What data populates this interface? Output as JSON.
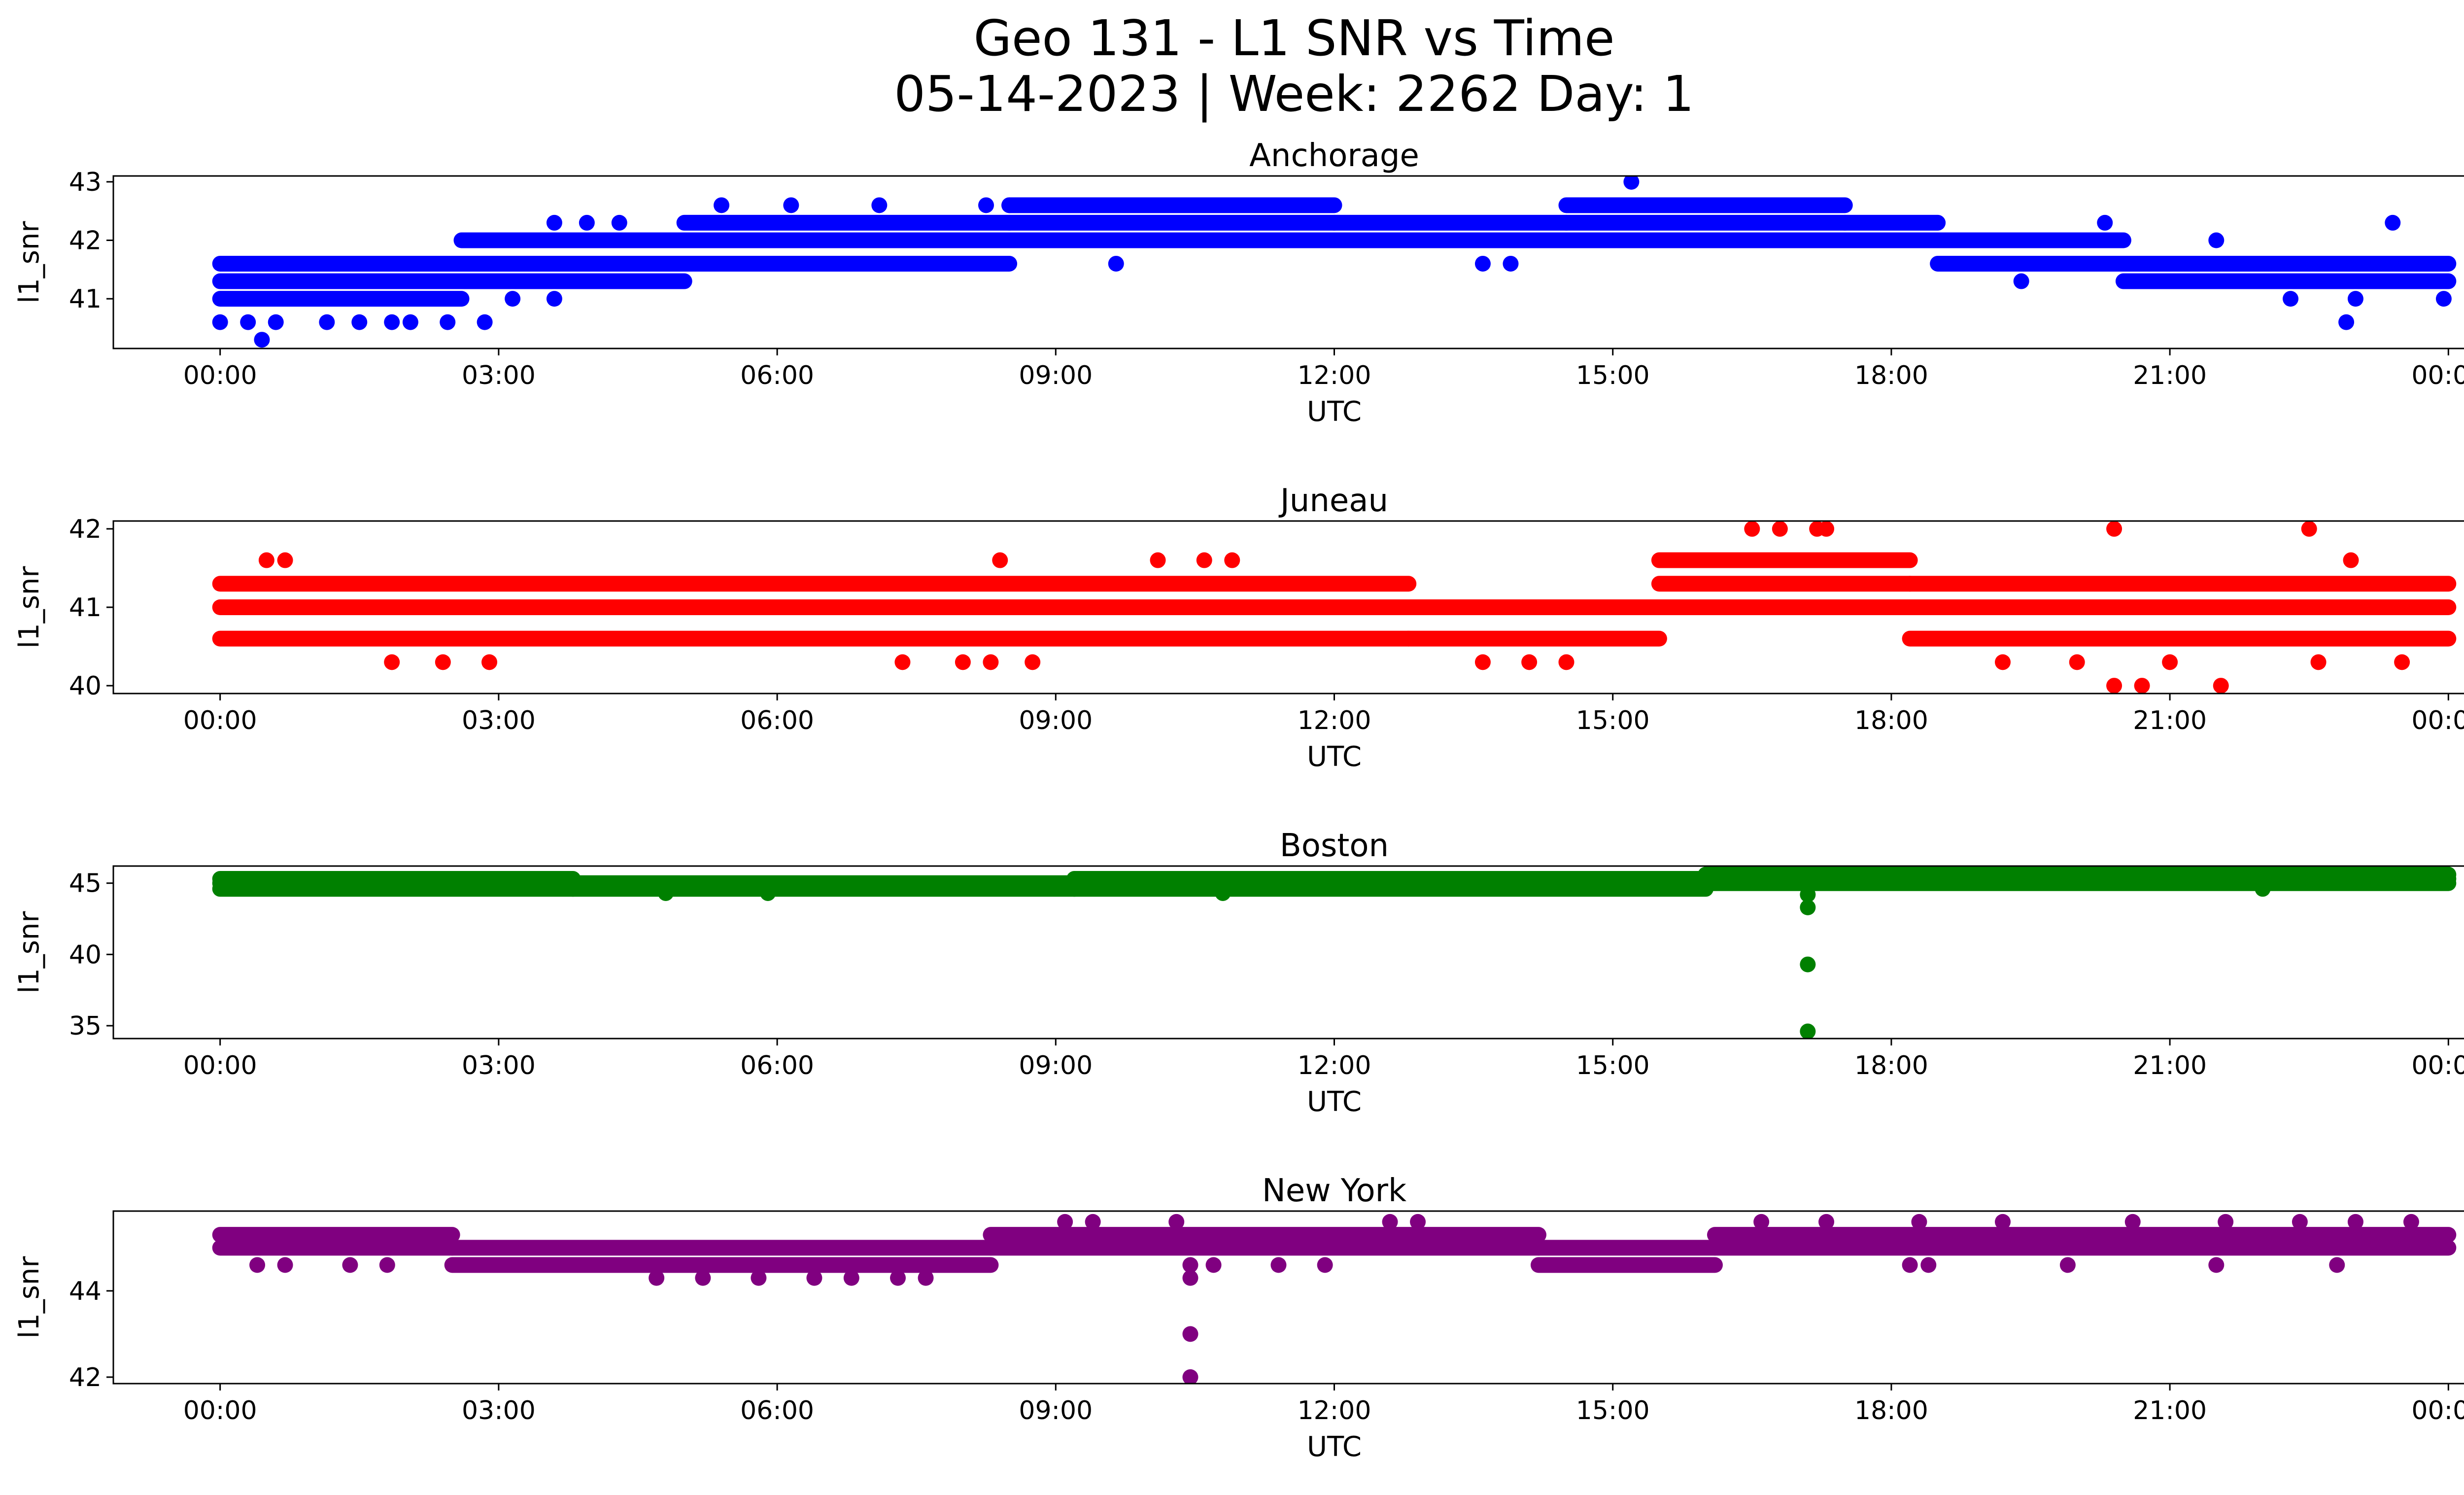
{
  "figure": {
    "title_line1": "Geo 131 - L1 SNR vs Time",
    "title_line2": "05-14-2023 | Week: 2262 Day: 1"
  },
  "chart_data": [
    {
      "type": "scatter",
      "title": "Anchorage",
      "xlabel": "UTC",
      "ylabel": "l1_snr",
      "color": "#0000ff",
      "x_ticks": [
        "00:00",
        "03:00",
        "06:00",
        "09:00",
        "12:00",
        "15:00",
        "18:00",
        "21:00",
        "00:00"
      ],
      "x_range_hours": [
        0,
        24
      ],
      "xlim_hours": [
        -1.15,
        25.15
      ],
      "y_ticks": [
        41,
        42,
        43
      ],
      "ylim": [
        40.15,
        43.1
      ],
      "levels": [
        40.3,
        40.6,
        41.0,
        41.3,
        41.6,
        42.0,
        42.3,
        42.6,
        43.0
      ],
      "baseline": [
        {
          "from": 0.0,
          "to": 2.6,
          "levels": [
            41.0,
            41.3,
            41.6
          ]
        },
        {
          "from": 2.6,
          "to": 5.0,
          "levels": [
            41.3,
            41.6,
            42.0
          ]
        },
        {
          "from": 5.0,
          "to": 8.5,
          "levels": [
            41.6,
            42.0,
            42.3
          ]
        },
        {
          "from": 8.5,
          "to": 12.0,
          "levels": [
            42.0,
            42.3,
            42.6
          ]
        },
        {
          "from": 12.0,
          "to": 14.5,
          "levels": [
            42.0,
            42.3
          ]
        },
        {
          "from": 14.5,
          "to": 17.5,
          "levels": [
            42.0,
            42.3,
            42.6
          ]
        },
        {
          "from": 17.5,
          "to": 18.5,
          "levels": [
            42.0,
            42.3
          ]
        },
        {
          "from": 18.5,
          "to": 20.5,
          "levels": [
            41.6,
            42.0
          ]
        },
        {
          "from": 20.5,
          "to": 24.0,
          "levels": [
            41.3,
            41.6
          ]
        }
      ],
      "points": [
        [
          0.45,
          40.3
        ],
        [
          0.0,
          40.6
        ],
        [
          0.3,
          40.6
        ],
        [
          0.6,
          40.6
        ],
        [
          1.15,
          40.6
        ],
        [
          1.5,
          40.6
        ],
        [
          1.85,
          40.6
        ],
        [
          2.05,
          40.6
        ],
        [
          2.45,
          40.6
        ],
        [
          2.85,
          40.6
        ],
        [
          3.15,
          41.0
        ],
        [
          3.6,
          41.0
        ],
        [
          3.85,
          41.6
        ],
        [
          3.6,
          42.3
        ],
        [
          3.95,
          42.3
        ],
        [
          4.3,
          42.3
        ],
        [
          5.4,
          42.6
        ],
        [
          6.15,
          42.6
        ],
        [
          7.1,
          42.6
        ],
        [
          8.25,
          42.6
        ],
        [
          8.5,
          42.6
        ],
        [
          9.65,
          41.6
        ],
        [
          13.6,
          41.6
        ],
        [
          13.9,
          41.6
        ],
        [
          15.2,
          43.0
        ],
        [
          14.95,
          42.0
        ],
        [
          19.4,
          41.3
        ],
        [
          20.3,
          42.3
        ],
        [
          21.5,
          42.0
        ],
        [
          22.9,
          40.6
        ],
        [
          22.3,
          41.0
        ],
        [
          23.0,
          41.0
        ],
        [
          23.4,
          42.3
        ],
        [
          23.95,
          41.0
        ]
      ]
    },
    {
      "type": "scatter",
      "title": "Juneau",
      "xlabel": "UTC",
      "ylabel": "l1_snr",
      "color": "#ff0000",
      "x_ticks": [
        "00:00",
        "03:00",
        "06:00",
        "09:00",
        "12:00",
        "15:00",
        "18:00",
        "21:00",
        "00:00"
      ],
      "x_range_hours": [
        0,
        24
      ],
      "xlim_hours": [
        -1.15,
        25.15
      ],
      "y_ticks": [
        40,
        41,
        42
      ],
      "ylim": [
        39.9,
        42.1
      ],
      "levels": [
        40.0,
        40.3,
        40.6,
        41.0,
        41.3,
        41.6,
        42.0
      ],
      "baseline": [
        {
          "from": 0.0,
          "to": 12.8,
          "levels": [
            40.6,
            41.0,
            41.3
          ]
        },
        {
          "from": 12.8,
          "to": 15.5,
          "levels": [
            40.6,
            41.0
          ]
        },
        {
          "from": 15.5,
          "to": 18.2,
          "levels": [
            41.0,
            41.3,
            41.6
          ]
        },
        {
          "from": 18.2,
          "to": 24.0,
          "levels": [
            40.6,
            41.0,
            41.3
          ]
        }
      ],
      "points": [
        [
          0.5,
          41.6
        ],
        [
          0.7,
          41.6
        ],
        [
          1.85,
          40.3
        ],
        [
          2.4,
          40.3
        ],
        [
          2.9,
          40.3
        ],
        [
          7.35,
          40.3
        ],
        [
          8.0,
          40.3
        ],
        [
          8.3,
          40.3
        ],
        [
          8.75,
          40.3
        ],
        [
          8.4,
          41.6
        ],
        [
          10.1,
          41.6
        ],
        [
          10.6,
          41.6
        ],
        [
          10.9,
          41.6
        ],
        [
          13.6,
          40.3
        ],
        [
          14.1,
          40.3
        ],
        [
          14.5,
          40.3
        ],
        [
          16.5,
          42.0
        ],
        [
          16.8,
          42.0
        ],
        [
          17.2,
          42.0
        ],
        [
          17.3,
          42.0
        ],
        [
          16.6,
          41.0
        ],
        [
          19.2,
          40.3
        ],
        [
          20.0,
          40.3
        ],
        [
          20.4,
          40.0
        ],
        [
          20.7,
          40.0
        ],
        [
          21.0,
          40.3
        ],
        [
          21.55,
          40.0
        ],
        [
          20.4,
          42.0
        ],
        [
          22.5,
          42.0
        ],
        [
          22.95,
          41.6
        ],
        [
          22.6,
          40.3
        ],
        [
          23.5,
          40.3
        ]
      ]
    },
    {
      "type": "scatter",
      "title": "Boston",
      "xlabel": "UTC",
      "ylabel": "l1_snr",
      "color": "#008000",
      "x_ticks": [
        "00:00",
        "03:00",
        "06:00",
        "09:00",
        "12:00",
        "15:00",
        "18:00",
        "21:00",
        "00:00"
      ],
      "x_range_hours": [
        0,
        24
      ],
      "xlim_hours": [
        -1.15,
        25.15
      ],
      "y_ticks": [
        35,
        40,
        45
      ],
      "ylim": [
        34.1,
        46.2
      ],
      "levels": [
        44.3,
        44.6,
        45.0,
        45.3,
        45.6
      ],
      "baseline": [
        {
          "from": 0.0,
          "to": 3.8,
          "levels": [
            44.6,
            45.0,
            45.3
          ]
        },
        {
          "from": 3.8,
          "to": 9.2,
          "levels": [
            44.6,
            45.0
          ]
        },
        {
          "from": 9.2,
          "to": 16.0,
          "levels": [
            44.6,
            45.0,
            45.3
          ]
        },
        {
          "from": 16.0,
          "to": 24.0,
          "levels": [
            45.0,
            45.3,
            45.6
          ]
        }
      ],
      "points": [
        [
          17.1,
          44.2
        ],
        [
          17.1,
          43.3
        ],
        [
          17.1,
          39.3
        ],
        [
          17.1,
          34.6
        ],
        [
          4.8,
          44.3
        ],
        [
          5.9,
          44.3
        ],
        [
          10.8,
          44.3
        ],
        [
          22.0,
          44.6
        ]
      ]
    },
    {
      "type": "scatter",
      "title": "New York",
      "xlabel": "UTC",
      "ylabel": "l1_snr",
      "color": "#800080",
      "x_ticks": [
        "00:00",
        "03:00",
        "06:00",
        "09:00",
        "12:00",
        "15:00",
        "18:00",
        "21:00",
        "00:00"
      ],
      "x_range_hours": [
        0,
        24
      ],
      "xlim_hours": [
        -1.15,
        25.15
      ],
      "y_ticks": [
        42,
        44
      ],
      "ylim": [
        41.85,
        45.85
      ],
      "levels": [
        42.0,
        43.0,
        44.3,
        44.6,
        45.0,
        45.3,
        45.6
      ],
      "baseline": [
        {
          "from": 0.0,
          "to": 2.5,
          "levels": [
            45.0,
            45.3
          ]
        },
        {
          "from": 2.5,
          "to": 8.3,
          "levels": [
            44.6,
            45.0
          ]
        },
        {
          "from": 8.3,
          "to": 14.2,
          "levels": [
            45.0,
            45.3
          ]
        },
        {
          "from": 14.2,
          "to": 16.1,
          "levels": [
            44.6,
            45.0
          ]
        },
        {
          "from": 16.1,
          "to": 24.0,
          "levels": [
            45.0,
            45.3
          ]
        }
      ],
      "points": [
        [
          10.45,
          44.3
        ],
        [
          10.45,
          44.6
        ],
        [
          10.45,
          43.0
        ],
        [
          10.45,
          42.0
        ],
        [
          4.7,
          44.3
        ],
        [
          5.2,
          44.3
        ],
        [
          5.8,
          44.3
        ],
        [
          6.4,
          44.3
        ],
        [
          6.8,
          44.3
        ],
        [
          7.3,
          44.3
        ],
        [
          7.6,
          44.3
        ],
        [
          0.4,
          44.6
        ],
        [
          0.7,
          44.6
        ],
        [
          1.4,
          44.6
        ],
        [
          1.8,
          44.6
        ],
        [
          9.1,
          45.6
        ],
        [
          9.4,
          45.6
        ],
        [
          10.3,
          45.6
        ],
        [
          12.6,
          45.6
        ],
        [
          12.9,
          45.6
        ],
        [
          16.6,
          45.6
        ],
        [
          17.3,
          45.6
        ],
        [
          18.3,
          45.6
        ],
        [
          19.2,
          45.6
        ],
        [
          20.6,
          45.6
        ],
        [
          21.6,
          45.6
        ],
        [
          22.4,
          45.6
        ],
        [
          23.0,
          45.6
        ],
        [
          23.6,
          45.6
        ],
        [
          10.7,
          44.6
        ],
        [
          11.4,
          44.6
        ],
        [
          11.9,
          44.6
        ],
        [
          18.2,
          44.6
        ],
        [
          18.4,
          44.6
        ],
        [
          19.9,
          44.6
        ],
        [
          21.5,
          44.6
        ],
        [
          22.8,
          44.6
        ]
      ]
    }
  ]
}
